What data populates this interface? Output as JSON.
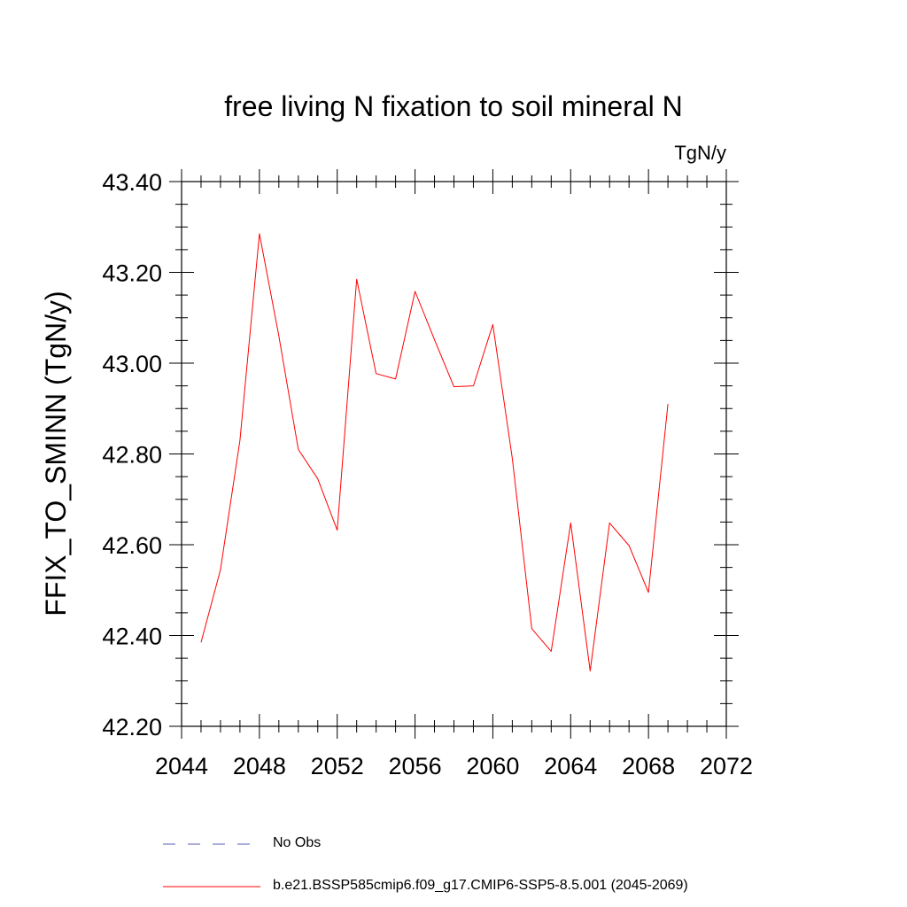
{
  "chart_data": {
    "type": "line",
    "title": "free living N fixation to soil mineral N",
    "units": "TgN/y",
    "xlabel": "",
    "ylabel": "FFIX_TO_SMINN  (TgN/y)",
    "xlim": [
      2044,
      2072
    ],
    "ylim": [
      42.2,
      43.4
    ],
    "x_ticks": [
      "2044",
      "2048",
      "2052",
      "2056",
      "2060",
      "2064",
      "2068",
      "2072"
    ],
    "y_ticks": [
      "42.20",
      "42.40",
      "42.60",
      "42.80",
      "43.00",
      "43.20",
      "43.40"
    ],
    "grid": false,
    "legend_position": "bottom",
    "series": [
      {
        "name": "No Obs",
        "color": "#5b5bb5",
        "style": "dashed",
        "x": [],
        "values": []
      },
      {
        "name": "b.e21.BSSP585cmip6.f09_g17.CMIP6-SSP5-8.5.001 (2045-2069)",
        "color": "#ff0000",
        "style": "solid",
        "x": [
          2045,
          2046,
          2047,
          2048,
          2049,
          2050,
          2051,
          2052,
          2053,
          2054,
          2055,
          2056,
          2057,
          2058,
          2059,
          2060,
          2061,
          2062,
          2063,
          2064,
          2065,
          2066,
          2067,
          2068,
          2069
        ],
        "values": [
          42.385,
          42.545,
          42.83,
          43.285,
          43.06,
          42.81,
          42.745,
          42.632,
          43.185,
          42.977,
          42.965,
          43.158,
          43.052,
          42.948,
          42.95,
          43.085,
          42.79,
          42.415,
          42.365,
          42.648,
          42.322,
          42.648,
          42.598,
          42.495,
          42.91
        ]
      }
    ]
  }
}
